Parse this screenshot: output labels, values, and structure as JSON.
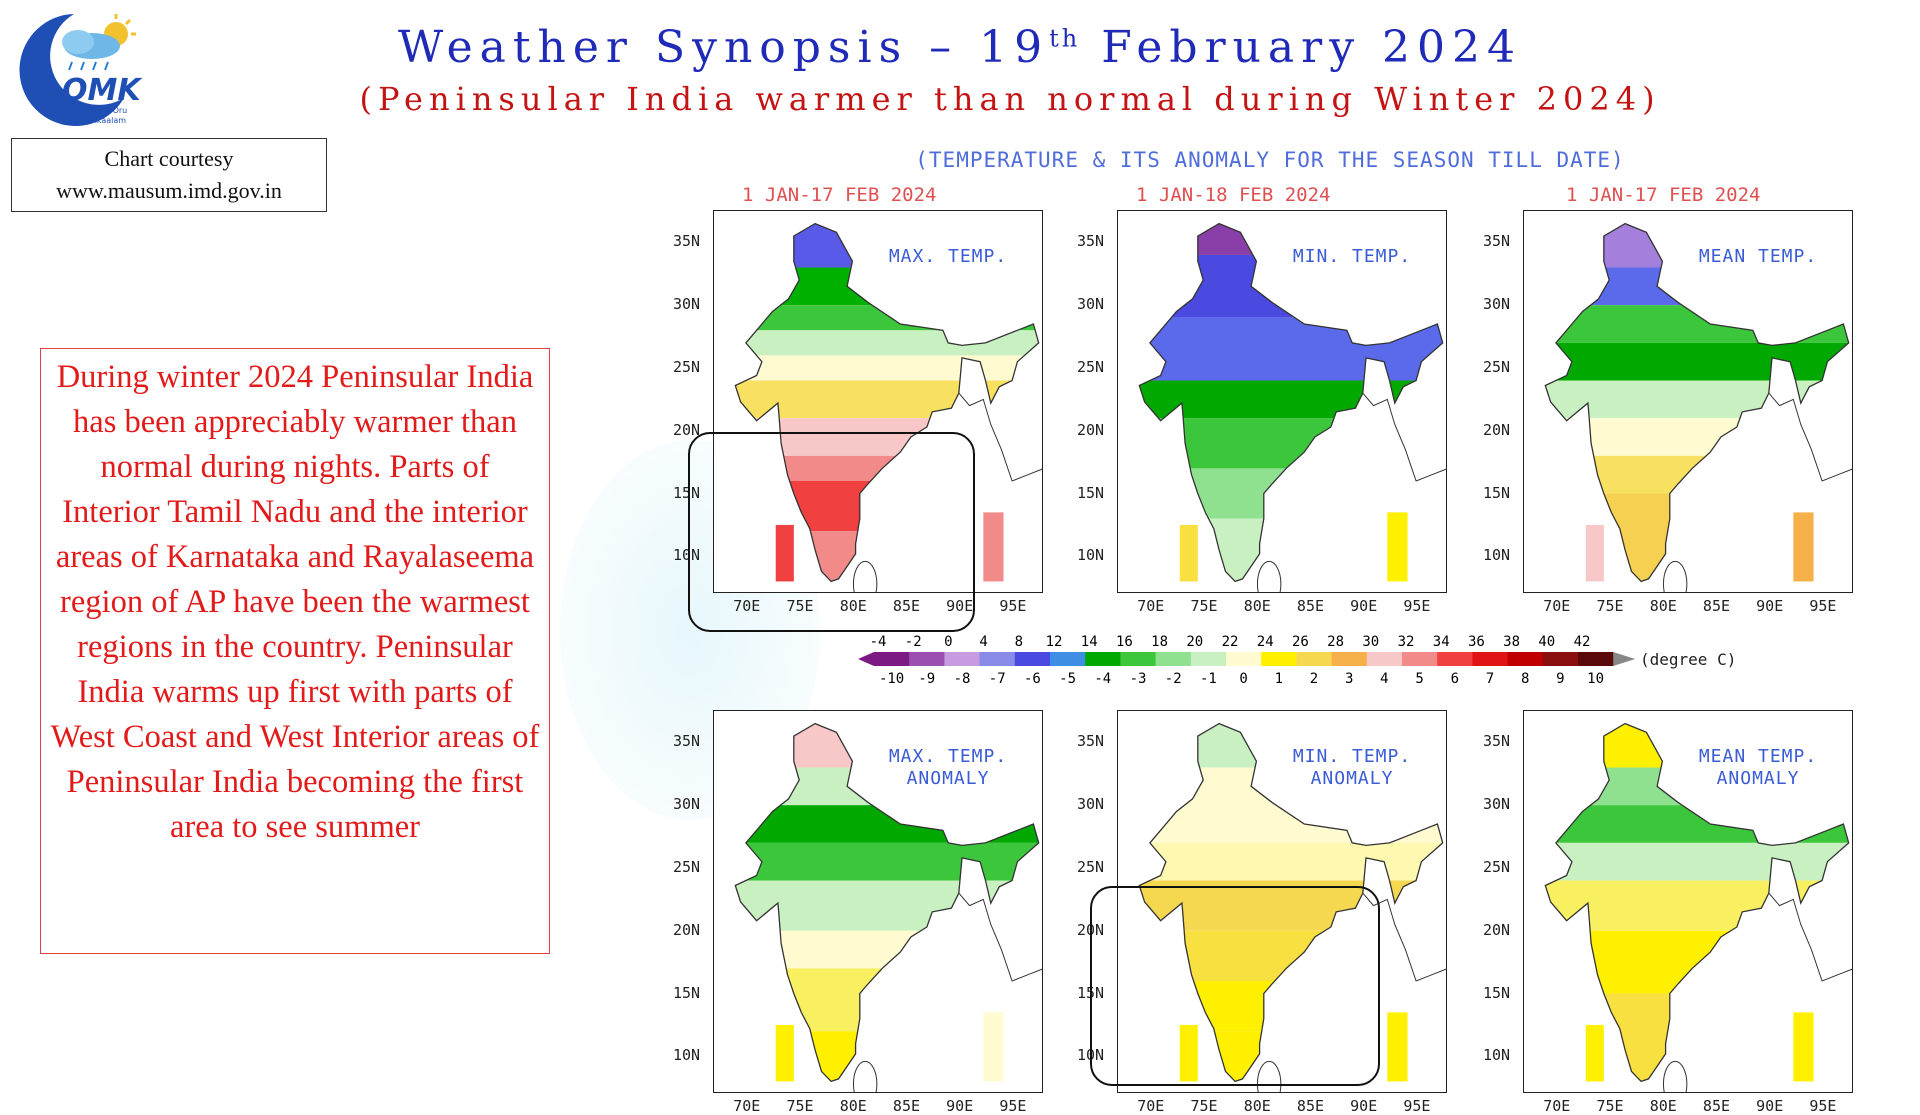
{
  "header": {
    "title_part1": "Weather Synopsis – 19",
    "title_sup": "th",
    "title_part2": " February 2024",
    "subtitle": "(Peninsular India warmer than normal during Winter 2024)"
  },
  "logo": {
    "text_main": "OMK",
    "text_line1": "Chennaiyil Oru",
    "text_line2": "Mazhaikkaalam"
  },
  "courtesy": {
    "line1": "Chart courtesy",
    "line2": "www.mausum.imd.gov.in"
  },
  "description": "During winter 2024 Peninsular India has been appreciably warmer than normal during nights. Parts of Interior Tamil Nadu and the interior areas of Karnataka and Rayalaseema region of AP have been the warmest regions in the country. Peninsular India warms up first with parts of West Coast and West Interior areas of Peninsular India becoming the first area to see summer",
  "season_heading": "(TEMPERATURE & ITS ANOMALY FOR THE SEASON TILL DATE)",
  "panels_top": [
    {
      "date": "1 JAN-17 FEB 2024",
      "label1": "MAX. TEMP.",
      "label2": ""
    },
    {
      "date": "1 JAN-18 FEB 2024",
      "label1": "MIN. TEMP.",
      "label2": ""
    },
    {
      "date": "1 JAN-17 FEB 2024",
      "label1": "MEAN TEMP.",
      "label2": ""
    }
  ],
  "panels_bottom": [
    {
      "label1": "MAX. TEMP.",
      "label2": "ANOMALY"
    },
    {
      "label1": "MIN. TEMP.",
      "label2": "ANOMALY"
    },
    {
      "label1": "MEAN TEMP.",
      "label2": "ANOMALY"
    }
  ],
  "axes": {
    "lat_ticks": [
      "35N",
      "30N",
      "25N",
      "20N",
      "15N",
      "10N"
    ],
    "lon_ticks": [
      "70E",
      "75E",
      "80E",
      "85E",
      "90E",
      "95E"
    ]
  },
  "colorbar": {
    "unit": "(degree C)",
    "temp_labels": [
      "-4",
      "-2",
      "0",
      "4",
      "8",
      "12",
      "14",
      "16",
      "18",
      "20",
      "22",
      "24",
      "26",
      "28",
      "30",
      "32",
      "34",
      "36",
      "38",
      "40",
      "42"
    ],
    "anom_labels": [
      "-10",
      "-9",
      "-8",
      "-7",
      "-6",
      "-5",
      "-4",
      "-3",
      "-2",
      "-1",
      "0",
      "1",
      "2",
      "3",
      "4",
      "5",
      "6",
      "7",
      "8",
      "9",
      "10"
    ],
    "colors": [
      "#7a1a82",
      "#9b4fb0",
      "#c69be0",
      "#8a8ae8",
      "#4a4ae0",
      "#3f8ee6",
      "#00a800",
      "#3cc63c",
      "#8fe08f",
      "#c8f0c0",
      "#fffad0",
      "#fff000",
      "#f6d850",
      "#f5b04a",
      "#f8c8c8",
      "#f38a8a",
      "#f04040",
      "#e11414",
      "#c00000",
      "#8a1010",
      "#5a0a0a"
    ]
  },
  "colors": {
    "title": "#1f2bb8",
    "subtitle": "#c41313",
    "body_text": "#e31a1a",
    "panel_label": "#3a5cd6"
  }
}
